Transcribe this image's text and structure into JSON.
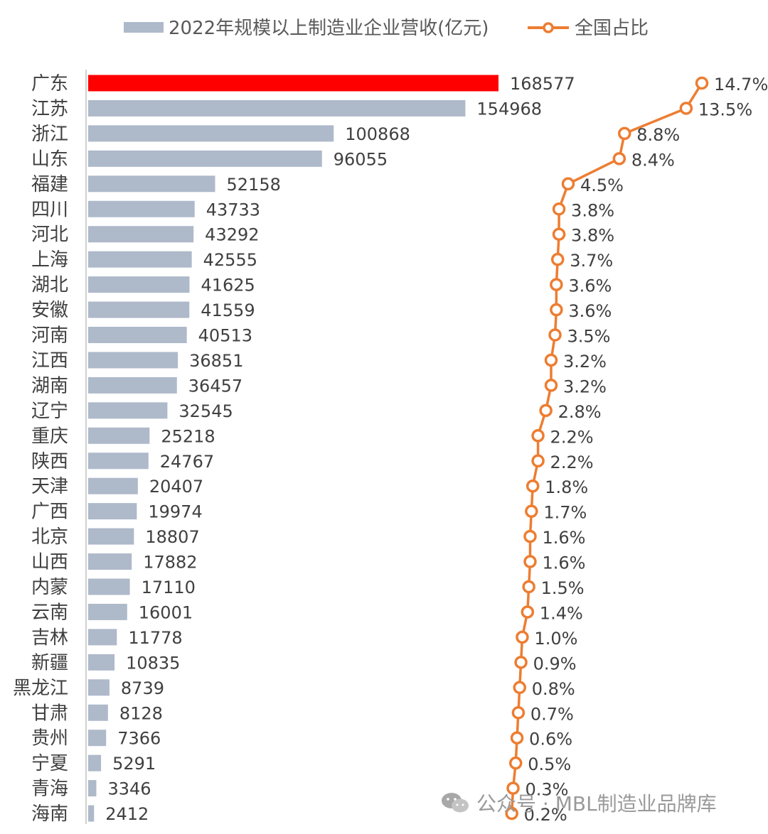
{
  "chart_data": {
    "type": "bar",
    "orientation": "horizontal",
    "categories": [
      "广东",
      "江苏",
      "浙江",
      "山东",
      "福建",
      "四川",
      "河北",
      "上海",
      "湖北",
      "安徽",
      "河南",
      "江西",
      "湖南",
      "辽宁",
      "重庆",
      "陕西",
      "天津",
      "广西",
      "北京",
      "山西",
      "内蒙",
      "云南",
      "吉林",
      "新疆",
      "黑龙江",
      "甘肃",
      "贵州",
      "宁夏",
      "青海",
      "海南"
    ],
    "series": [
      {
        "name": "2022年规模以上制造业企业营收(亿元)",
        "type": "bar",
        "values": [
          168577,
          154968,
          100868,
          96055,
          52158,
          43733,
          43292,
          42555,
          41625,
          41559,
          40513,
          36851,
          36457,
          32545,
          25218,
          24767,
          20407,
          19974,
          18807,
          17882,
          17110,
          16001,
          11778,
          10835,
          8739,
          8128,
          7366,
          5291,
          3346,
          2412
        ],
        "color": "#aeb9ca",
        "highlight_index": 0,
        "highlight_color": "#ff0000"
      },
      {
        "name": "全国占比",
        "type": "line",
        "values": [
          14.7,
          13.5,
          8.8,
          8.4,
          4.5,
          3.8,
          3.8,
          3.7,
          3.6,
          3.6,
          3.5,
          3.2,
          3.2,
          2.8,
          2.2,
          2.2,
          1.8,
          1.7,
          1.6,
          1.6,
          1.5,
          1.4,
          1.0,
          0.9,
          0.8,
          0.7,
          0.6,
          0.5,
          0.3,
          0.2
        ],
        "labels": [
          "14.7%",
          "13.5%",
          "8.8%",
          "8.4%",
          "4.5%",
          "3.8%",
          "3.8%",
          "3.7%",
          "3.6%",
          "3.6%",
          "3.5%",
          "3.2%",
          "3.2%",
          "2.8%",
          "2.2%",
          "2.2%",
          "1.8%",
          "1.7%",
          "1.6%",
          "1.6%",
          "1.5%",
          "1.4%",
          "1.0%",
          "0.9%",
          "0.8%",
          "0.7%",
          "0.6%",
          "0.5%",
          "0.3%",
          "0.2%"
        ],
        "color": "#ed7d31"
      }
    ],
    "legend": "top",
    "grid": false
  },
  "watermark": {
    "text": "公众号 · MBL制造业品牌库",
    "icon": "wechat-icon"
  }
}
